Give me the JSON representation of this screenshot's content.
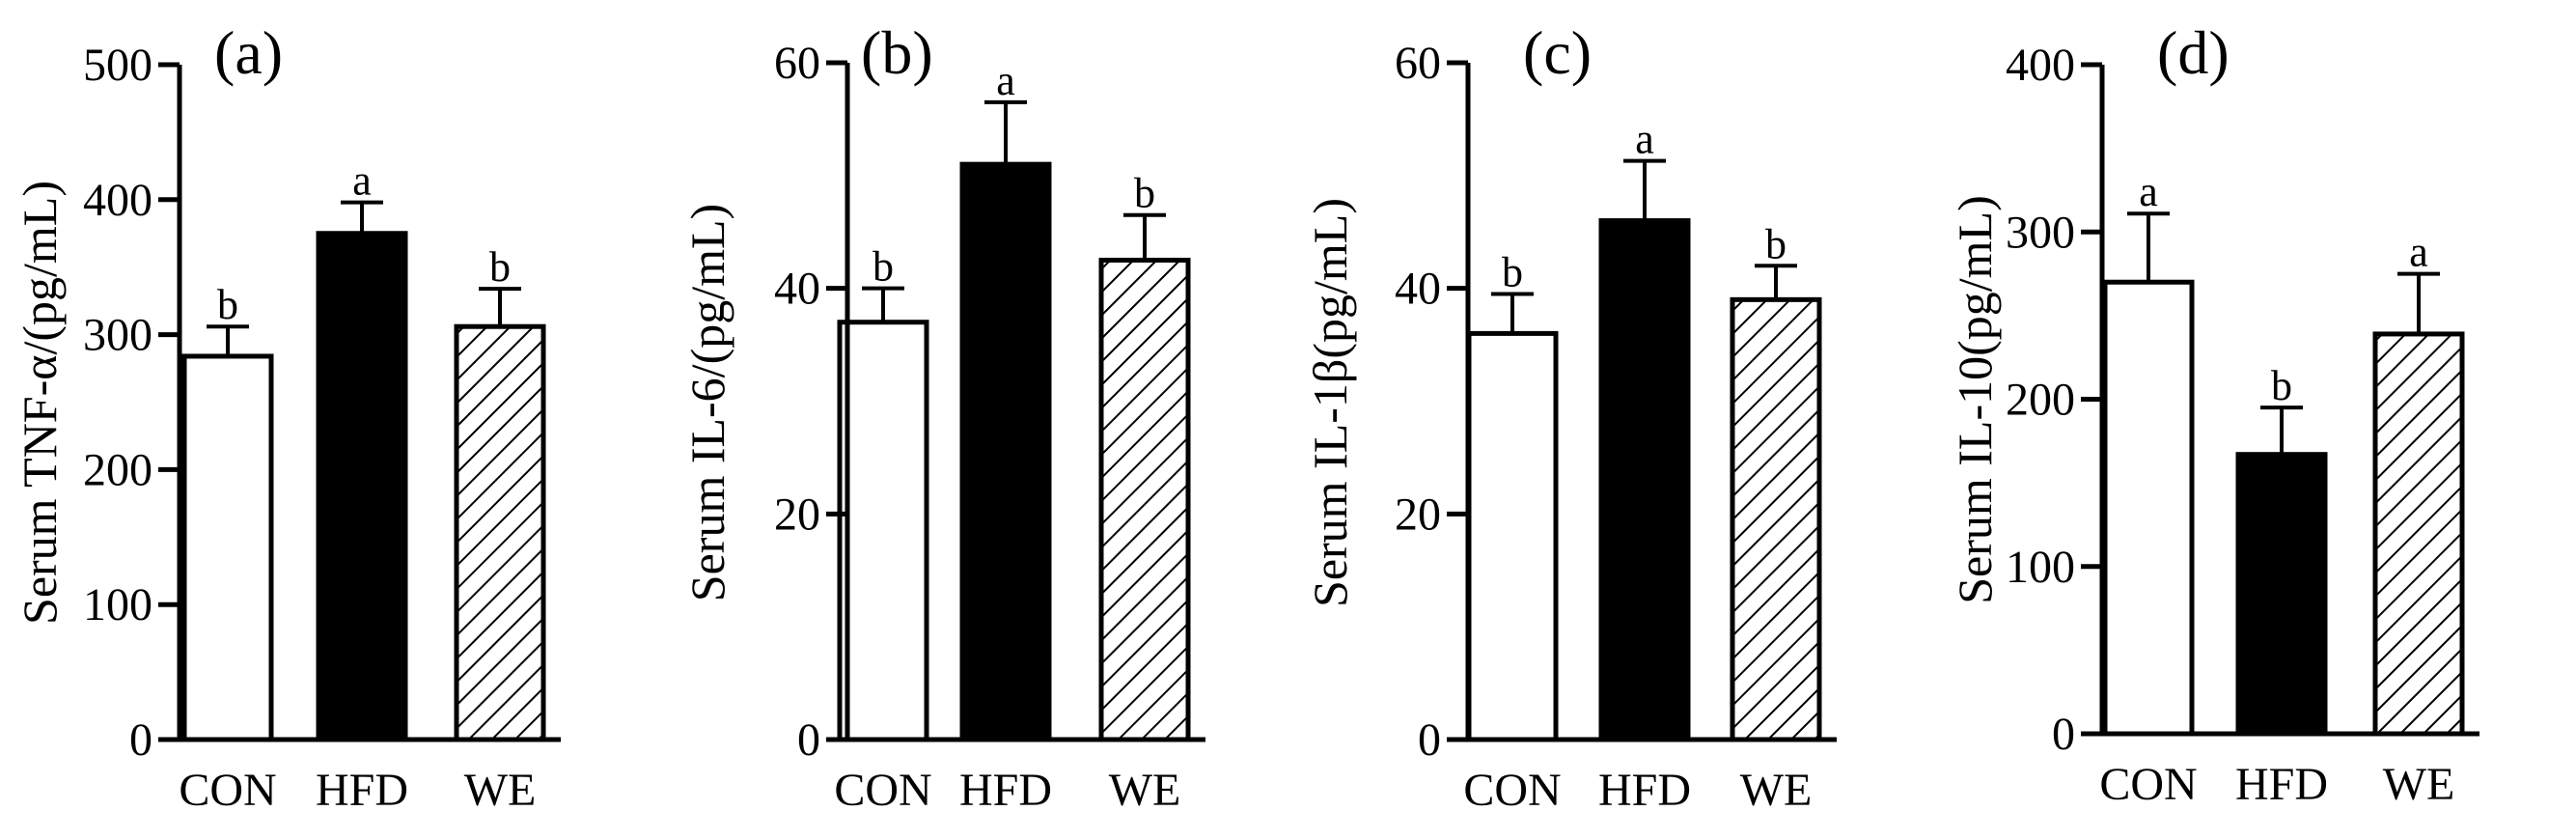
{
  "chart_data": [
    {
      "type": "bar",
      "panel": "(a)",
      "title": "",
      "xlabel": "",
      "ylabel": "Serum TNF-α/(pg/mL)",
      "categories": [
        "CON",
        "HFD",
        "WE"
      ],
      "values": [
        284,
        375,
        306
      ],
      "errors": [
        22,
        23,
        28
      ],
      "significance": [
        "b",
        "a",
        "b"
      ],
      "fills": [
        "white",
        "black",
        "hatch"
      ],
      "ylim": [
        0,
        500
      ],
      "yticks": [
        0,
        100,
        200,
        300,
        400,
        500
      ]
    },
    {
      "type": "bar",
      "panel": "(b)",
      "title": "",
      "xlabel": "",
      "ylabel": "Serum IL-6/(pg/mL)",
      "categories": [
        "CON",
        "HFD",
        "WE"
      ],
      "values": [
        37,
        51,
        42.5
      ],
      "errors": [
        3,
        5.5,
        4
      ],
      "significance": [
        "b",
        "a",
        "b"
      ],
      "fills": [
        "white",
        "black",
        "hatch"
      ],
      "ylim": [
        0,
        60
      ],
      "yticks": [
        0,
        20,
        40,
        60
      ]
    },
    {
      "type": "bar",
      "panel": "(c)",
      "title": "",
      "xlabel": "",
      "ylabel": "Serum IL-1β(pg/mL)",
      "categories": [
        "CON",
        "HFD",
        "WE"
      ],
      "values": [
        36,
        46,
        39
      ],
      "errors": [
        3.5,
        5.3,
        3
      ],
      "significance": [
        "b",
        "a",
        "b"
      ],
      "fills": [
        "white",
        "black",
        "hatch"
      ],
      "ylim": [
        0,
        60
      ],
      "yticks": [
        0,
        20,
        40,
        60
      ]
    },
    {
      "type": "bar",
      "panel": "(d)",
      "title": "",
      "xlabel": "",
      "ylabel": "Serum IL-10(pg/mL)",
      "categories": [
        "CON",
        "HFD",
        "WE"
      ],
      "values": [
        270,
        167,
        239
      ],
      "errors": [
        41,
        28,
        36
      ],
      "significance": [
        "a",
        "b",
        "a"
      ],
      "fills": [
        "white",
        "black",
        "hatch"
      ],
      "ylim": [
        0,
        400
      ],
      "yticks": [
        0,
        100,
        200,
        300,
        400
      ]
    }
  ],
  "colors": {
    "ink": "#000000",
    "paper": "#ffffff"
  }
}
